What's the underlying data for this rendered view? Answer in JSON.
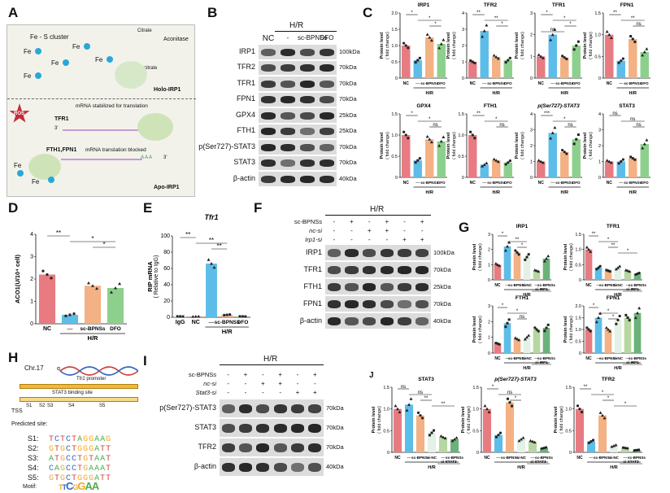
{
  "panels": {
    "A": "A",
    "B": "B",
    "C": "C",
    "D": "D",
    "E": "E",
    "F": "F",
    "G": "G",
    "H": "H",
    "I": "I",
    "J": "J"
  },
  "colors": {
    "nc": "#e87b82",
    "hr": "#5dbde9",
    "sc": "#f4b183",
    "dfo": "#8dd08d",
    "sinc": "#e3f1e6",
    "si": "#b6d7a0",
    "sibp": "#6bb27a"
  },
  "schematic": {
    "fe_s": "Fe - S cluster",
    "fe": "Fe",
    "citrate": "Citrate",
    "isocitrate": "Isocitrate",
    "aconitase": "Aconitase",
    "holo": "Holo-IRP1",
    "ros": "ROS",
    "tfr1": "TFR1",
    "stab": "mRNA  stabilized for translation",
    "ftfp": "FTH1,FPN1",
    "blocked": "mRNA  translation blocked",
    "apo": "Apo-IRP1",
    "p3": "3'",
    "p5": "5'",
    "aaa": "A A A"
  },
  "blotB": {
    "group": "H/R",
    "lanes": [
      "NC",
      "-",
      "sc-BPNSs",
      "DFO"
    ],
    "rows": [
      {
        "n": "IRP1",
        "k": "100kDa"
      },
      {
        "n": "TFR2",
        "k": "70kDa"
      },
      {
        "n": "TFR1",
        "k": "70kDa"
      },
      {
        "n": "FPN1",
        "k": "70kDa"
      },
      {
        "n": "GPX4",
        "k": "25kDa"
      },
      {
        "n": "FTH1",
        "k": "25kDa"
      },
      {
        "n": "p(Ser727)-STAT3",
        "k": "70kDa"
      },
      {
        "n": "STAT3",
        "k": "70kDa"
      },
      {
        "n": "β-actin",
        "k": "40kDa"
      }
    ]
  },
  "blotF": {
    "group": "H/R",
    "conds": [
      {
        "n": "sc-BPNSs",
        "v": [
          "-",
          "+",
          "-",
          "+",
          "-",
          "+"
        ]
      },
      {
        "n": "nc-si",
        "v": [
          "-",
          "-",
          "+",
          "+",
          "-",
          "-"
        ]
      },
      {
        "n": "Irp1-si",
        "v": [
          "-",
          "-",
          "-",
          "-",
          "+",
          "+"
        ]
      }
    ],
    "rows": [
      {
        "n": "IRP1",
        "k": "100kDa"
      },
      {
        "n": "TFR1",
        "k": "70kDa"
      },
      {
        "n": "FTH1",
        "k": "25kDa"
      },
      {
        "n": "FPN1",
        "k": "70kDa"
      },
      {
        "n": "β-actin",
        "k": "40kDa"
      }
    ]
  },
  "blotI": {
    "group": "H/R",
    "conds": [
      {
        "n": "sc-BPNSs",
        "v": [
          "-",
          "+",
          "-",
          "+",
          "-",
          "+"
        ]
      },
      {
        "n": "nc-si",
        "v": [
          "-",
          "-",
          "+",
          "+",
          "-",
          "-"
        ]
      },
      {
        "n": "Stat3-si",
        "v": [
          "-",
          "-",
          "-",
          "-",
          "+",
          "+"
        ]
      }
    ],
    "rows": [
      {
        "n": "p(Ser727)-STAT3",
        "k": "70kDa"
      },
      {
        "n": "STAT3",
        "k": "70kDa"
      },
      {
        "n": "TFR2",
        "k": "70kDa"
      },
      {
        "n": "β-actin",
        "k": "40kDa"
      }
    ]
  },
  "geneH": {
    "chr": "Chr.17",
    "q": "q",
    "promoter": "Tfr2 promoter",
    "binding": "STAT3 binding site",
    "tss": "TSS",
    "sites": [
      "S1",
      "S2",
      "S3",
      "S4",
      "S5"
    ],
    "predicted": "Predicted site:",
    "seqs": [
      {
        "s": "S1:",
        "q": "TCTCTAGGAAG"
      },
      {
        "s": "S2:",
        "q": "GTGCTGGGATT"
      },
      {
        "s": "S3:",
        "q": "ATGCCTGTAAT"
      },
      {
        "s": "S4:",
        "q": "CAGCCTGAAAT"
      },
      {
        "s": "S5:",
        "q": "GTGCTGGGATT"
      }
    ],
    "motif": "Motif:"
  },
  "axis": {
    "pl": "Protein level",
    "fc": "( fold change)",
    "hr": "H/R",
    "nc": "NC",
    "dash": "—",
    "sc": "sc-BPNSs",
    "dfo": "DFO",
    "scdfo": "sc-BPNSsDFO",
    "sinc": "si-NC",
    "sirp1": "si-IRP1",
    "sistat3": "si-STAT3",
    "igg": "IgG"
  },
  "D_labels": {
    "ylabel": "ACO1(U/10⁴ cell)"
  },
  "E_labels": {
    "title": "Tfr1",
    "ylabel": "RIP mRNA",
    "ylabel2": "( Relative to IgG)"
  },
  "chart_data": [
    {
      "panel": "C",
      "type": "bar",
      "title": "IRP1",
      "categories": [
        "NC",
        "—",
        "sc-BPNSs",
        "DFO"
      ],
      "values": [
        1.0,
        0.55,
        1.25,
        1.05
      ],
      "ylim": [
        0,
        2.0
      ],
      "ticks": [
        "0",
        "0.5",
        "1.0",
        "1.5",
        "2.0"
      ],
      "sig": [
        "*",
        "*",
        "*"
      ]
    },
    {
      "panel": "C",
      "type": "bar",
      "title": "TFR2",
      "categories": [
        "NC",
        "—",
        "sc-BPNSs",
        "DFO"
      ],
      "values": [
        1.0,
        2.9,
        1.3,
        1.1
      ],
      "ylim": [
        0,
        4
      ],
      "ticks": [
        "0",
        "1",
        "2",
        "3",
        "4"
      ],
      "sig": [
        "**",
        "**",
        "*"
      ]
    },
    {
      "panel": "C",
      "type": "bar",
      "title": "TFR1",
      "categories": [
        "NC",
        "—",
        "sc-BPNSs",
        "DFO"
      ],
      "values": [
        1.0,
        2.0,
        0.95,
        1.5
      ],
      "ylim": [
        0,
        3
      ],
      "ticks": [
        "0",
        "1",
        "2",
        "3"
      ],
      "sig": [
        "*",
        "*",
        "*",
        "ns"
      ]
    },
    {
      "panel": "C",
      "type": "bar",
      "title": "FPN1",
      "categories": [
        "NC",
        "—",
        "sc-BPNSs",
        "DFO"
      ],
      "values": [
        1.0,
        0.4,
        0.9,
        0.6
      ],
      "ylim": [
        0,
        1.5
      ],
      "ticks": [
        "0",
        "0.5",
        "1.0",
        "1.5"
      ],
      "sig": [
        "**",
        "**",
        "ns"
      ]
    },
    {
      "panel": "C",
      "type": "bar",
      "title": "GPX4",
      "categories": [
        "NC",
        "—",
        "sc-BPNSs",
        "DFO"
      ],
      "values": [
        1.0,
        0.4,
        0.9,
        0.85
      ],
      "ylim": [
        0,
        1.5
      ],
      "ticks": [
        "0",
        "0.5",
        "1.0",
        "1.5"
      ],
      "sig": [
        "*",
        "*",
        "ns"
      ]
    },
    {
      "panel": "C",
      "type": "bar",
      "title": "FTH1",
      "categories": [
        "NC",
        "—",
        "sc-BPNSs",
        "DFO"
      ],
      "values": [
        1.0,
        0.3,
        0.4,
        0.35
      ],
      "ylim": [
        0,
        1.5
      ],
      "ticks": [
        "0",
        "0.5",
        "1.0",
        "1.5"
      ],
      "sig": [
        "**",
        "*",
        "ns"
      ]
    },
    {
      "panel": "C",
      "type": "bar",
      "title": "p(Ser727)-STAT3",
      "categories": [
        "NC",
        "—",
        "sc-BPNSs",
        "DFO"
      ],
      "values": [
        1.0,
        2.8,
        1.6,
        2.4
      ],
      "ylim": [
        0,
        4
      ],
      "ticks": [
        "0",
        "1",
        "2",
        "3",
        "4"
      ],
      "sig": [
        "***",
        "*",
        "ns"
      ]
    },
    {
      "panel": "C",
      "type": "bar",
      "title": "STAT3",
      "categories": [
        "NC",
        "—",
        "sc-BPNSs",
        "DFO"
      ],
      "values": [
        1.0,
        1.0,
        1.2,
        2.1
      ],
      "ylim": [
        0,
        4
      ],
      "ticks": [
        "0",
        "1",
        "2",
        "3",
        "4"
      ],
      "sig": [
        "ns",
        "ns",
        "ns"
      ]
    },
    {
      "panel": "D",
      "type": "bar",
      "categories": [
        "NC",
        "—",
        "sc-BPNSs",
        "DFO"
      ],
      "values": [
        2.2,
        0.4,
        1.7,
        1.6
      ],
      "ylim": [
        0,
        4
      ],
      "ticks": [
        "0",
        "1",
        "2",
        "3",
        "4"
      ],
      "sig": [
        "**",
        "*",
        "*"
      ]
    },
    {
      "panel": "E",
      "type": "bar",
      "categories": [
        "IgG",
        "NC",
        "—",
        "sc-BPNSs",
        "DFO"
      ],
      "values": [
        1,
        1,
        66,
        3,
        1
      ],
      "ylim": [
        0,
        100
      ],
      "ticks": [
        "0",
        "20",
        "40",
        "60",
        "80",
        "100"
      ],
      "sig": [
        "**",
        "**",
        "**"
      ]
    },
    {
      "panel": "G",
      "type": "bar",
      "title": "IRP1",
      "categories": [
        "NC",
        "—",
        "sc-BPNSs",
        "si-NC",
        "—",
        "sc-BPNSs"
      ],
      "values": [
        1.0,
        2.2,
        1.8,
        1.5,
        0.6,
        1.4
      ],
      "ylim": [
        0,
        3
      ],
      "ticks": [
        "0",
        "1",
        "2",
        "3"
      ],
      "sig": [
        "*",
        "**",
        "*"
      ]
    },
    {
      "panel": "G",
      "type": "bar",
      "title": "TFR1",
      "categories": [
        "NC",
        "—",
        "sc-BPNSs",
        "si-NC",
        "—",
        "sc-BPNSs"
      ],
      "values": [
        1.0,
        0.4,
        0.3,
        0.4,
        0.3,
        0.2
      ],
      "ylim": [
        0,
        1.5
      ],
      "ticks": [
        "0",
        "0.5",
        "1.0",
        "1.5"
      ],
      "sig": [
        "**",
        "*",
        "**",
        "*"
      ]
    },
    {
      "panel": "G",
      "type": "bar",
      "title": "FTH1",
      "categories": [
        "NC",
        "—",
        "sc-BPNSs",
        "si-NC",
        "—",
        "sc-BPNSs"
      ],
      "values": [
        0.6,
        1.9,
        0.9,
        1.0,
        1.5,
        1.6
      ],
      "ylim": [
        0,
        3
      ],
      "ticks": [
        "0",
        "1",
        "2",
        "3"
      ],
      "sig": [
        "*",
        "*",
        "ns"
      ]
    },
    {
      "panel": "G",
      "type": "bar",
      "title": "FPN1",
      "categories": [
        "NC",
        "—",
        "sc-BPNSs",
        "si-NC",
        "—",
        "sc-BPNSs"
      ],
      "values": [
        1.0,
        1.5,
        1.0,
        1.4,
        1.5,
        1.7
      ],
      "ylim": [
        0,
        2
      ],
      "ticks": [
        "0",
        "0.5",
        "1.0",
        "1.5",
        "2.0"
      ],
      "sig": [
        "*",
        "*",
        "*"
      ]
    },
    {
      "panel": "J",
      "type": "bar",
      "title": "STAT3",
      "categories": [
        "NC",
        "—",
        "sc-BPNSs",
        "si-NC",
        "—",
        "sc-BPNSs"
      ],
      "values": [
        1.0,
        1.1,
        0.85,
        0.45,
        0.35,
        0.3
      ],
      "ylim": [
        0,
        1.5
      ],
      "ticks": [
        "0",
        "0.5",
        "1.0",
        "1.5"
      ],
      "sig": [
        "ns",
        "ns",
        "**",
        "**"
      ]
    },
    {
      "panel": "J",
      "type": "bar",
      "title": "p(Ser727)-STAT3",
      "categories": [
        "NC",
        "—",
        "sc-BPNSs",
        "si-NC",
        "—",
        "sc-BPNSs"
      ],
      "values": [
        1.0,
        0.4,
        1.15,
        0.3,
        0.25,
        0.1
      ],
      "ylim": [
        0,
        1.5
      ],
      "ticks": [
        "0",
        "0.5",
        "1.0",
        "1.5"
      ],
      "sig": [
        "*",
        "ns",
        "*"
      ]
    },
    {
      "panel": "J",
      "type": "bar",
      "title": "TFR2",
      "categories": [
        "NC",
        "—",
        "sc-BPNSs",
        "si-NC",
        "—",
        "sc-BPNSs"
      ],
      "values": [
        1.0,
        0.25,
        0.85,
        0.15,
        0.1,
        0.05
      ],
      "ylim": [
        0,
        1.5
      ],
      "ticks": [
        "0",
        "0.5",
        "1.0",
        "1.5"
      ],
      "sig": [
        "**",
        "*",
        "*",
        "*"
      ]
    }
  ]
}
